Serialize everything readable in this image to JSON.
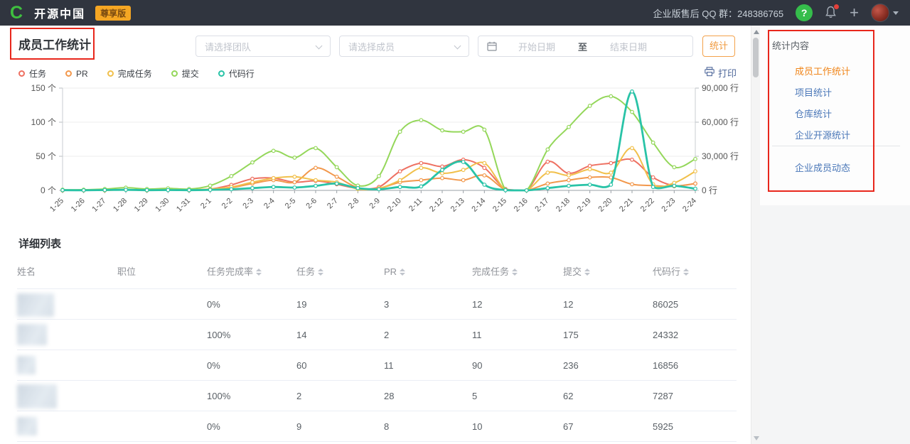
{
  "navbar": {
    "logo_letter": "C",
    "brand": "开源中国",
    "badge": "尊享版",
    "qq_label": "企业版售后 QQ 群：",
    "qq_number": "248386765",
    "help_glyph": "?",
    "plus_glyph": "+"
  },
  "page": {
    "title": "成员工作统计"
  },
  "filters": {
    "team_placeholder": "请选择团队",
    "member_placeholder": "请选择成员",
    "start_placeholder": "开始日期",
    "date_separator": "至",
    "end_placeholder": "结束日期",
    "submit_label": "统计"
  },
  "print_label": "打印",
  "chart_data": {
    "type": "line",
    "smooth": true,
    "grid": true,
    "x": [
      "1-25",
      "1-26",
      "1-27",
      "1-28",
      "1-29",
      "1-30",
      "1-31",
      "2-1",
      "2-2",
      "2-3",
      "2-4",
      "2-5",
      "2-6",
      "2-7",
      "2-8",
      "2-9",
      "2-10",
      "2-11",
      "2-12",
      "2-13",
      "2-14",
      "2-15",
      "2-16",
      "2-17",
      "2-18",
      "2-19",
      "2-20",
      "2-21",
      "2-22",
      "2-23",
      "2-24"
    ],
    "left_axis": {
      "unit": "个",
      "max": 150,
      "ticks": [
        0,
        50,
        100,
        150
      ]
    },
    "right_axis": {
      "unit": "行",
      "max": 90000,
      "ticks": [
        0,
        30000,
        60000,
        90000
      ]
    },
    "series": [
      {
        "name": "任务",
        "color": "#ee7061",
        "axis": "left",
        "values": [
          0,
          0,
          1,
          1,
          0,
          1,
          1,
          2,
          8,
          17,
          18,
          12,
          14,
          9,
          3,
          5,
          28,
          40,
          35,
          45,
          33,
          2,
          0,
          42,
          25,
          36,
          40,
          45,
          19,
          7,
          10
        ]
      },
      {
        "name": "PR",
        "color": "#f2984c",
        "axis": "left",
        "values": [
          0,
          0,
          0,
          1,
          0,
          1,
          0,
          1,
          4,
          10,
          15,
          12,
          33,
          20,
          4,
          3,
          12,
          15,
          18,
          15,
          22,
          1,
          0,
          10,
          15,
          19,
          19,
          9,
          7,
          6,
          10
        ]
      },
      {
        "name": "完成任务",
        "color": "#f1c04b",
        "axis": "left",
        "values": [
          0,
          0,
          0,
          1,
          0,
          1,
          1,
          2,
          5,
          12,
          18,
          20,
          15,
          12,
          2,
          3,
          15,
          33,
          25,
          30,
          40,
          1,
          0,
          26,
          22,
          31,
          26,
          62,
          9,
          11,
          28
        ]
      },
      {
        "name": "提交",
        "color": "#94d75a",
        "axis": "left",
        "values": [
          1,
          1,
          2,
          4,
          2,
          3,
          2,
          7,
          21,
          41,
          58,
          48,
          62,
          34,
          7,
          21,
          86,
          103,
          88,
          86,
          89,
          1,
          0,
          60,
          93,
          124,
          138,
          115,
          70,
          34,
          46
        ]
      },
      {
        "name": "代码行",
        "color": "#29c3a7",
        "axis": "right",
        "values": [
          200,
          100,
          300,
          500,
          200,
          300,
          200,
          500,
          1000,
          2000,
          3000,
          2500,
          4000,
          6000,
          2000,
          1000,
          3000,
          3500,
          18000,
          25000,
          5000,
          200,
          0,
          2000,
          4000,
          5000,
          5000,
          87000,
          3000,
          4000,
          1500
        ]
      }
    ]
  },
  "table": {
    "title": "详细列表",
    "columns": [
      {
        "label": "姓名",
        "sortable": false
      },
      {
        "label": "职位",
        "sortable": false
      },
      {
        "label": "任务完成率",
        "sortable": true
      },
      {
        "label": "任务",
        "sortable": true
      },
      {
        "label": "PR",
        "sortable": true
      },
      {
        "label": "完成任务",
        "sortable": true
      },
      {
        "label": "提交",
        "sortable": true
      },
      {
        "label": "代码行",
        "sortable": true
      }
    ],
    "rows": [
      {
        "name_redacted": true,
        "position": "",
        "completion": "0%",
        "tasks": "19",
        "pr": "3",
        "done": "12",
        "commits": "12",
        "lines": "86025"
      },
      {
        "name_redacted": true,
        "position": "",
        "completion": "100%",
        "tasks": "14",
        "pr": "2",
        "done": "11",
        "commits": "175",
        "lines": "24332"
      },
      {
        "name_redacted": true,
        "position": "",
        "completion": "0%",
        "tasks": "60",
        "pr": "11",
        "done": "90",
        "commits": "236",
        "lines": "16856"
      },
      {
        "name_redacted": true,
        "position": "",
        "completion": "100%",
        "tasks": "2",
        "pr": "28",
        "done": "5",
        "commits": "62",
        "lines": "7287"
      },
      {
        "name_redacted": true,
        "position": "",
        "completion": "0%",
        "tasks": "9",
        "pr": "8",
        "done": "10",
        "commits": "67",
        "lines": "5925"
      }
    ]
  },
  "sidebar": {
    "heading": "统计内容",
    "items": [
      {
        "label": "成员工作统计",
        "active": true
      },
      {
        "label": "项目统计",
        "active": false
      },
      {
        "label": "仓库统计",
        "active": false
      },
      {
        "label": "企业开源统计",
        "active": false
      }
    ],
    "footer_item": "企业成员动态"
  },
  "colors": {
    "accent_orange": "#f09a3e",
    "active_link": "#f08519",
    "link_blue": "#4a77b8",
    "annotation_red": "#e8271c",
    "navbar_bg": "#30353f"
  }
}
